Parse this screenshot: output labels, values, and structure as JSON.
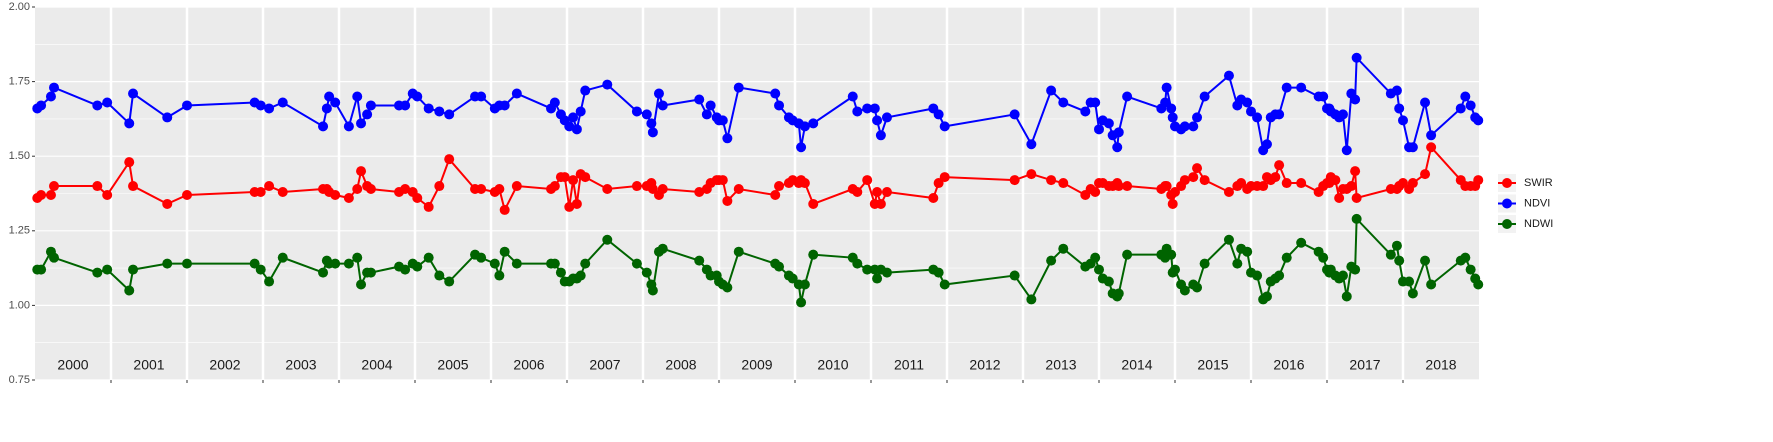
{
  "chart_data": {
    "type": "line",
    "categories": [
      "2000",
      "2001",
      "2002",
      "2003",
      "2004",
      "2005",
      "2006",
      "2007",
      "2008",
      "2009",
      "2010",
      "2011",
      "2012",
      "2013",
      "2014",
      "2015",
      "2016",
      "2017",
      "2018"
    ],
    "x": [
      2000.03,
      2000.08,
      2000.21,
      2000.25,
      2000.82,
      2000.95,
      2001.24,
      2001.29,
      2001.74,
      2002.0,
      2002.89,
      2002.97,
      2003.08,
      2003.26,
      2003.79,
      2003.84,
      2003.87,
      2003.95,
      2004.13,
      2004.24,
      2004.29,
      2004.37,
      2004.42,
      2004.79,
      2004.87,
      2004.97,
      2005.03,
      2005.18,
      2005.32,
      2005.45,
      2005.79,
      2005.87,
      2006.05,
      2006.11,
      2006.18,
      2006.34,
      2006.79,
      2006.84,
      2006.92,
      2006.97,
      2007.03,
      2007.08,
      2007.13,
      2007.18,
      2007.24,
      2007.53,
      2007.92,
      2008.05,
      2008.11,
      2008.13,
      2008.21,
      2008.26,
      2008.74,
      2008.84,
      2008.89,
      2008.97,
      2009.0,
      2009.05,
      2009.11,
      2009.26,
      2009.74,
      2009.79,
      2009.92,
      2009.97,
      2010.05,
      2010.08,
      2010.13,
      2010.24,
      2010.76,
      2010.82,
      2010.95,
      2011.05,
      2011.08,
      2011.13,
      2011.21,
      2011.82,
      2011.89,
      2011.97,
      2012.89,
      2013.11,
      2013.37,
      2013.53,
      2013.82,
      2013.89,
      2013.95,
      2014.0,
      2014.05,
      2014.13,
      2014.18,
      2014.24,
      2014.26,
      2014.37,
      2014.82,
      2014.87,
      2014.89,
      2014.95,
      2014.97,
      2015.0,
      2015.08,
      2015.13,
      2015.24,
      2015.29,
      2015.39,
      2015.71,
      2015.82,
      2015.87,
      2015.95,
      2016.0,
      2016.08,
      2016.16,
      2016.21,
      2016.26,
      2016.32,
      2016.37,
      2016.47,
      2016.66,
      2016.89,
      2016.95,
      2017.0,
      2017.03,
      2017.05,
      2017.11,
      2017.16,
      2017.21,
      2017.26,
      2017.32,
      2017.37,
      2017.39,
      2017.84,
      2017.92,
      2017.95,
      2018.0,
      2018.08,
      2018.13,
      2018.29,
      2018.37,
      2018.76,
      2018.82,
      2018.89,
      2018.95,
      2018.99
    ],
    "series": [
      {
        "name": "SWIR",
        "color": "#ff0000",
        "values": [
          1.36,
          1.37,
          1.37,
          1.4,
          1.4,
          1.37,
          1.48,
          1.4,
          1.34,
          1.37,
          1.38,
          1.38,
          1.4,
          1.38,
          1.39,
          1.39,
          1.38,
          1.37,
          1.36,
          1.39,
          1.45,
          1.4,
          1.39,
          1.38,
          1.39,
          1.38,
          1.36,
          1.33,
          1.4,
          1.49,
          1.39,
          1.39,
          1.38,
          1.39,
          1.32,
          1.4,
          1.39,
          1.4,
          1.43,
          1.43,
          1.33,
          1.42,
          1.34,
          1.44,
          1.43,
          1.39,
          1.4,
          1.4,
          1.41,
          1.39,
          1.37,
          1.39,
          1.38,
          1.39,
          1.41,
          1.42,
          1.42,
          1.42,
          1.35,
          1.39,
          1.37,
          1.4,
          1.41,
          1.42,
          1.41,
          1.42,
          1.41,
          1.34,
          1.39,
          1.38,
          1.42,
          1.34,
          1.38,
          1.34,
          1.38,
          1.36,
          1.41,
          1.43,
          1.42,
          1.44,
          1.42,
          1.41,
          1.37,
          1.39,
          1.38,
          1.41,
          1.41,
          1.4,
          1.4,
          1.41,
          1.4,
          1.4,
          1.39,
          1.4,
          1.4,
          1.37,
          1.34,
          1.38,
          1.4,
          1.42,
          1.43,
          1.46,
          1.42,
          1.38,
          1.4,
          1.41,
          1.39,
          1.4,
          1.4,
          1.4,
          1.43,
          1.42,
          1.43,
          1.47,
          1.41,
          1.41,
          1.38,
          1.4,
          1.41,
          1.41,
          1.43,
          1.42,
          1.36,
          1.39,
          1.39,
          1.4,
          1.45,
          1.36,
          1.39,
          1.39,
          1.4,
          1.41,
          1.39,
          1.41,
          1.44,
          1.53,
          1.42,
          1.4,
          1.4,
          1.4,
          1.42
        ]
      },
      {
        "name": "NDVI",
        "color": "#0000ff",
        "values": [
          1.66,
          1.67,
          1.7,
          1.73,
          1.67,
          1.68,
          1.61,
          1.71,
          1.63,
          1.67,
          1.68,
          1.67,
          1.66,
          1.68,
          1.6,
          1.66,
          1.7,
          1.68,
          1.6,
          1.7,
          1.61,
          1.64,
          1.67,
          1.67,
          1.67,
          1.71,
          1.7,
          1.66,
          1.65,
          1.64,
          1.7,
          1.7,
          1.66,
          1.67,
          1.67,
          1.71,
          1.66,
          1.68,
          1.64,
          1.62,
          1.6,
          1.63,
          1.59,
          1.65,
          1.72,
          1.74,
          1.65,
          1.64,
          1.61,
          1.58,
          1.71,
          1.67,
          1.69,
          1.64,
          1.67,
          1.63,
          1.62,
          1.62,
          1.56,
          1.73,
          1.71,
          1.67,
          1.63,
          1.62,
          1.61,
          1.53,
          1.6,
          1.61,
          1.7,
          1.65,
          1.66,
          1.66,
          1.62,
          1.57,
          1.63,
          1.66,
          1.64,
          1.6,
          1.64,
          1.54,
          1.72,
          1.68,
          1.65,
          1.68,
          1.68,
          1.59,
          1.62,
          1.61,
          1.57,
          1.53,
          1.58,
          1.7,
          1.66,
          1.68,
          1.73,
          1.66,
          1.63,
          1.6,
          1.59,
          1.6,
          1.6,
          1.63,
          1.7,
          1.77,
          1.67,
          1.69,
          1.68,
          1.65,
          1.63,
          1.52,
          1.54,
          1.63,
          1.64,
          1.64,
          1.73,
          1.73,
          1.7,
          1.7,
          1.66,
          1.66,
          1.65,
          1.64,
          1.63,
          1.64,
          1.52,
          1.71,
          1.69,
          1.83,
          1.71,
          1.72,
          1.66,
          1.62,
          1.53,
          1.53,
          1.68,
          1.57,
          1.66,
          1.7,
          1.67,
          1.63,
          1.62
        ]
      },
      {
        "name": "NDWI",
        "color": "#006400",
        "values": [
          1.12,
          1.12,
          1.18,
          1.16,
          1.11,
          1.12,
          1.05,
          1.12,
          1.14,
          1.14,
          1.14,
          1.12,
          1.08,
          1.16,
          1.11,
          1.15,
          1.14,
          1.14,
          1.14,
          1.16,
          1.07,
          1.11,
          1.11,
          1.13,
          1.12,
          1.14,
          1.13,
          1.16,
          1.1,
          1.08,
          1.17,
          1.16,
          1.14,
          1.1,
          1.18,
          1.14,
          1.14,
          1.14,
          1.11,
          1.08,
          1.08,
          1.09,
          1.09,
          1.1,
          1.14,
          1.22,
          1.14,
          1.11,
          1.07,
          1.05,
          1.18,
          1.19,
          1.15,
          1.12,
          1.1,
          1.1,
          1.08,
          1.07,
          1.06,
          1.18,
          1.14,
          1.13,
          1.1,
          1.09,
          1.07,
          1.01,
          1.07,
          1.17,
          1.16,
          1.14,
          1.12,
          1.12,
          1.09,
          1.12,
          1.11,
          1.12,
          1.11,
          1.07,
          1.1,
          1.02,
          1.15,
          1.19,
          1.13,
          1.14,
          1.16,
          1.12,
          1.09,
          1.08,
          1.04,
          1.03,
          1.04,
          1.17,
          1.17,
          1.16,
          1.19,
          1.17,
          1.11,
          1.12,
          1.07,
          1.05,
          1.07,
          1.06,
          1.14,
          1.22,
          1.14,
          1.19,
          1.18,
          1.11,
          1.1,
          1.02,
          1.03,
          1.08,
          1.09,
          1.1,
          1.16,
          1.21,
          1.18,
          1.16,
          1.12,
          1.11,
          1.12,
          1.1,
          1.09,
          1.1,
          1.03,
          1.13,
          1.12,
          1.29,
          1.17,
          1.2,
          1.15,
          1.08,
          1.08,
          1.04,
          1.15,
          1.07,
          1.15,
          1.16,
          1.12,
          1.09,
          1.07
        ]
      }
    ],
    "xlim": [
      2000,
      2019
    ],
    "xticks": [
      2001,
      2002,
      2003,
      2004,
      2005,
      2006,
      2007,
      2008,
      2009,
      2010,
      2011,
      2012,
      2013,
      2014,
      2015,
      2016,
      2017,
      2018
    ],
    "ylim": [
      0.75,
      2.0
    ],
    "yticks": [
      {
        "value": 0.75,
        "label": "0.75"
      },
      {
        "value": 1.0,
        "label": "1.00"
      },
      {
        "value": 1.25,
        "label": "1.25"
      },
      {
        "value": 1.5,
        "label": "1.50"
      },
      {
        "value": 1.75,
        "label": "1.75"
      },
      {
        "value": 2.0,
        "label": "2.00"
      }
    ],
    "grid": true,
    "legend": "right"
  }
}
